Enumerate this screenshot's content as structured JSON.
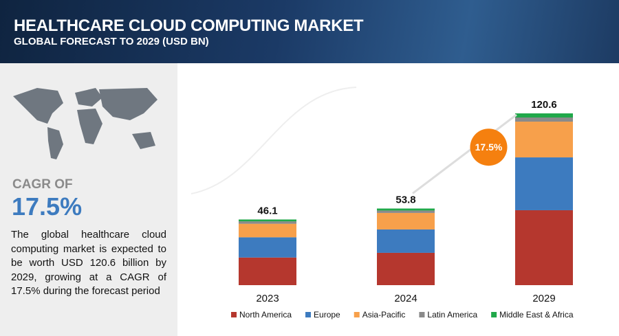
{
  "header": {
    "title": "HEALTHCARE CLOUD COMPUTING MARKET",
    "subtitle": "GLOBAL FORECAST TO 2029 (USD BN)"
  },
  "sidebar": {
    "cagr_label": "CAGR OF",
    "cagr_value": "17.5%",
    "description": "The global healthcare cloud computing market is expected to be worth USD 120.6 billion by 2029, growing at a CAGR of 17.5% during the forecast period"
  },
  "chart_data": {
    "type": "bar",
    "stacked": true,
    "categories": [
      "2023",
      "2024",
      "2029"
    ],
    "series": [
      {
        "name": "North America",
        "color": "#b5372e",
        "values": [
          19.4,
          22.7,
          52.6
        ]
      },
      {
        "name": "Europe",
        "color": "#3d7bbf",
        "values": [
          14.2,
          16.4,
          37.1
        ]
      },
      {
        "name": "Asia-Pacific",
        "color": "#f7a04b",
        "values": [
          9.5,
          11.6,
          25.1
        ]
      },
      {
        "name": "Latin America",
        "color": "#8a8a8a",
        "values": [
          1.7,
          1.7,
          2.9
        ]
      },
      {
        "name": "Middle East & Africa",
        "color": "#20a84a",
        "values": [
          1.3,
          1.4,
          2.9
        ]
      }
    ],
    "totals": [
      46.1,
      53.8,
      120.6
    ],
    "annotation": "17.5%",
    "annotation_color": "#f5800f"
  }
}
